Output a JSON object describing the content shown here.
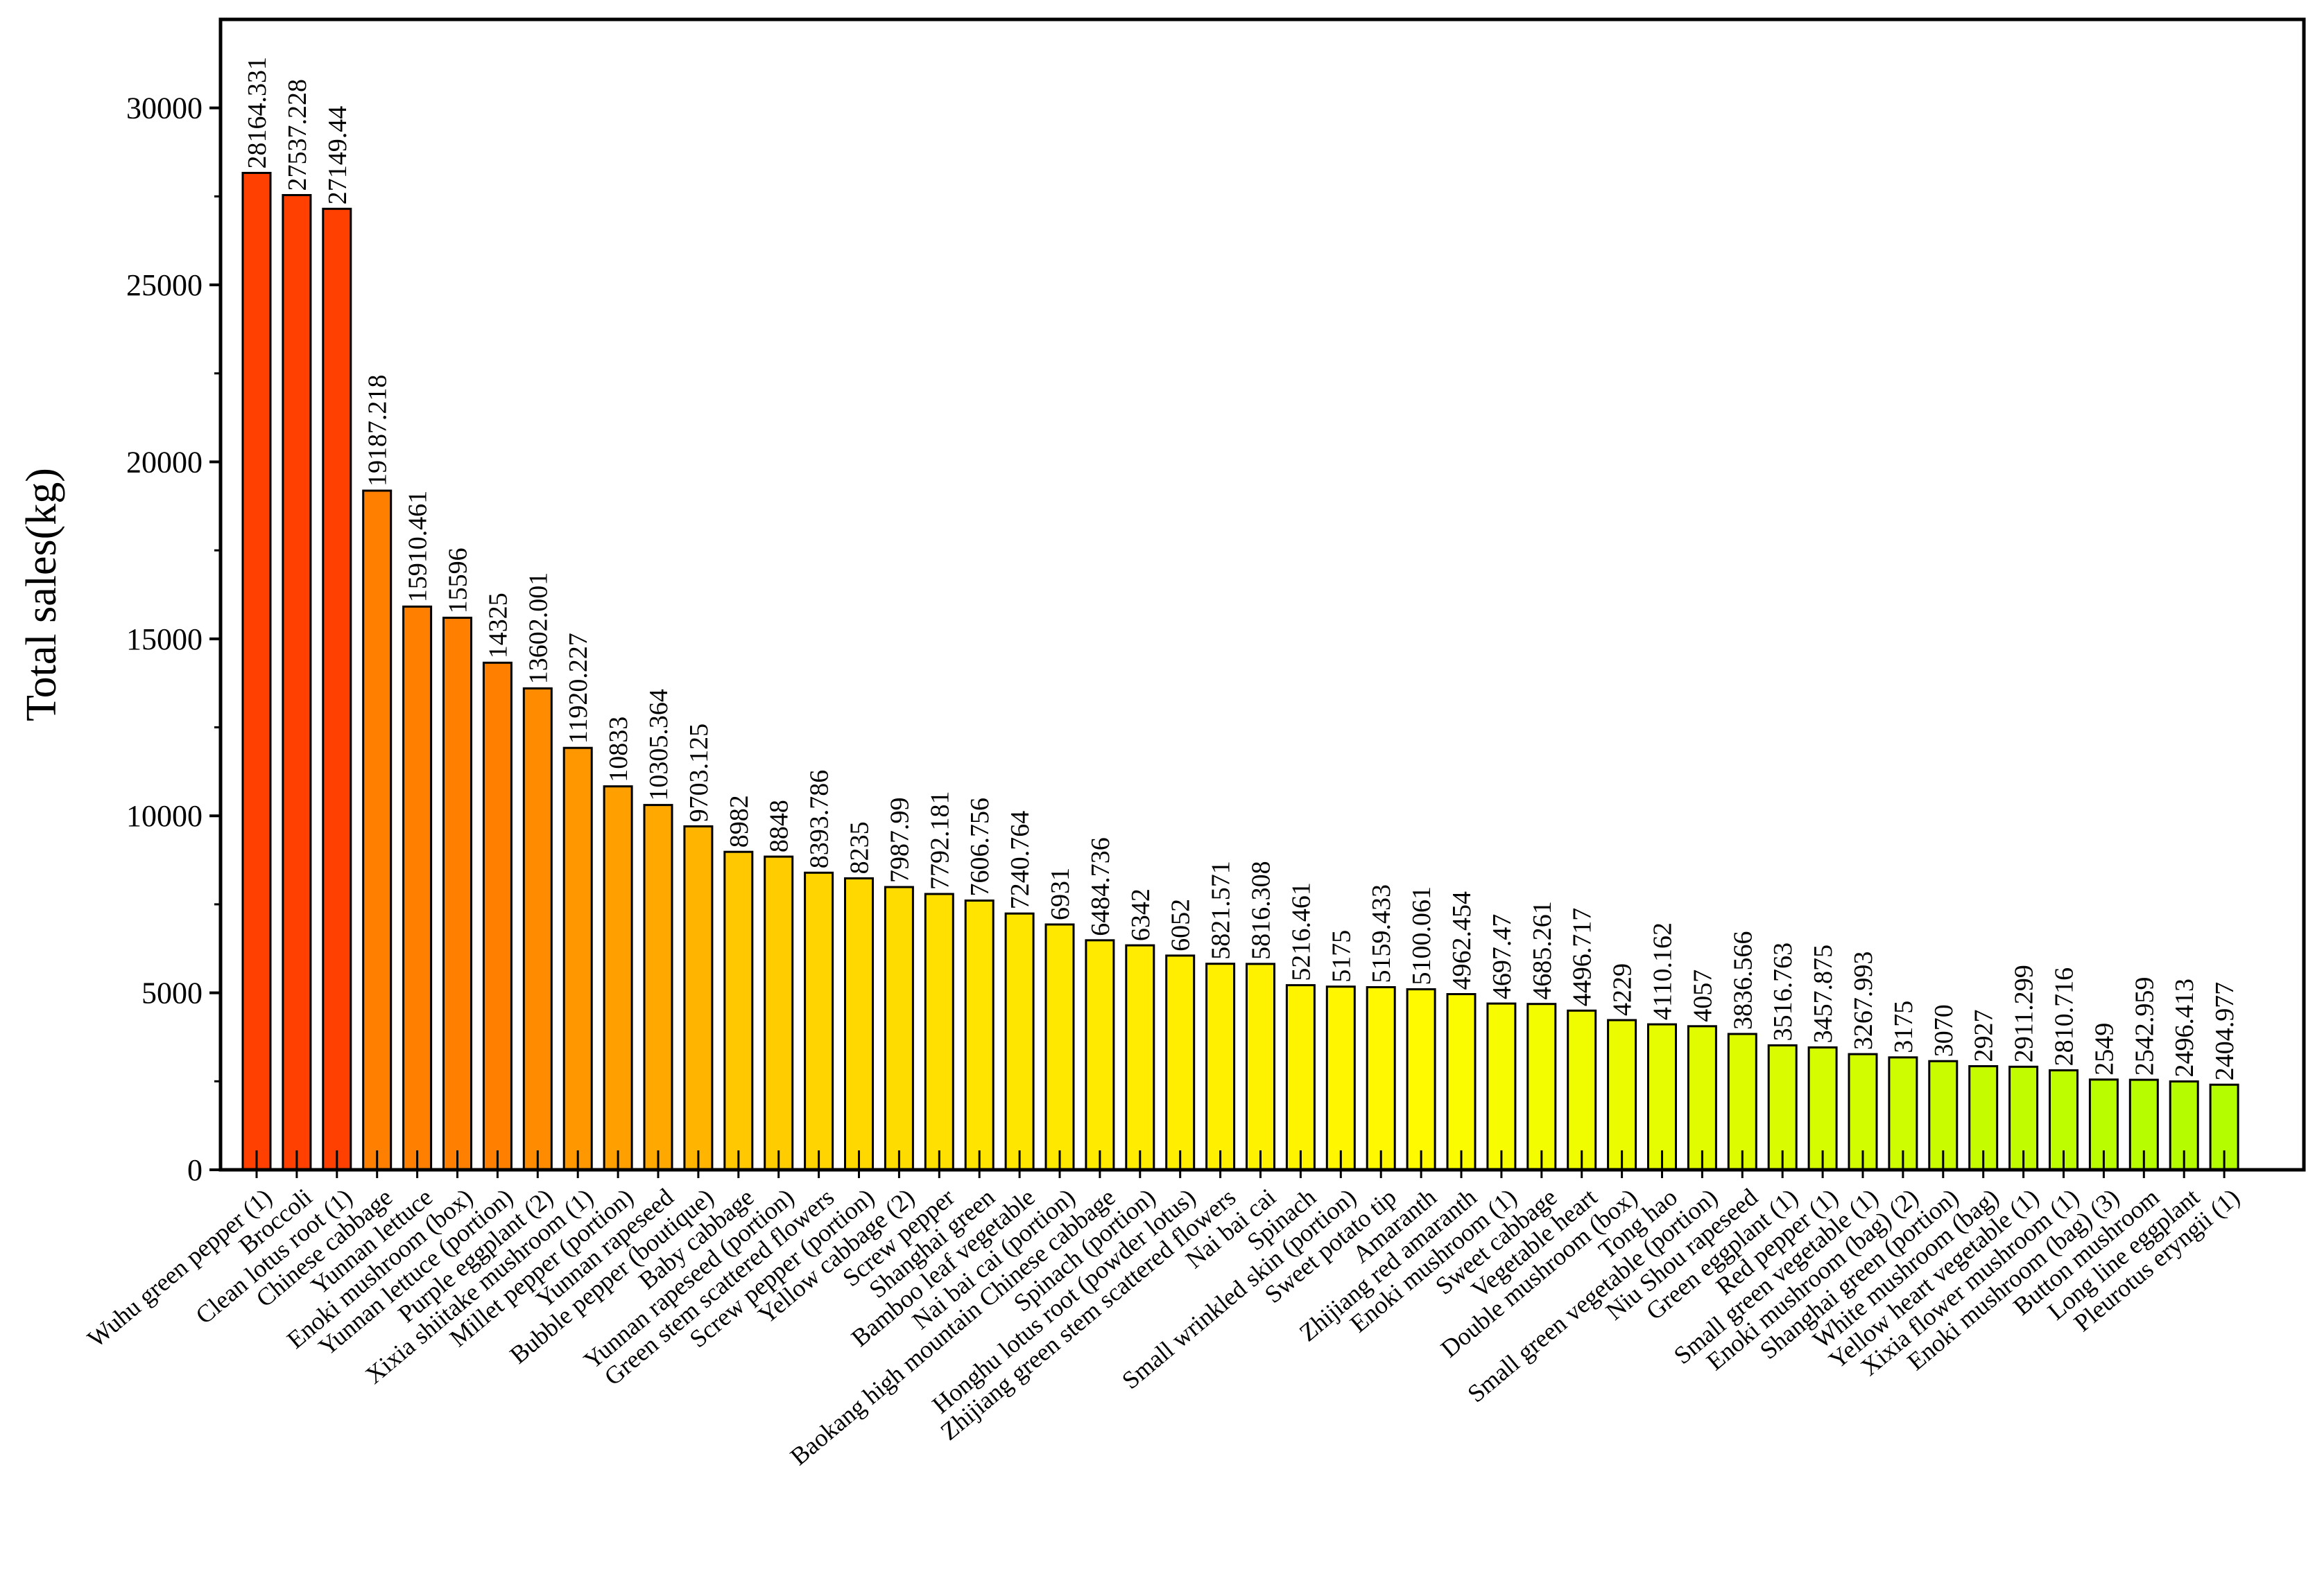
{
  "chart_data": {
    "type": "bar",
    "title": "",
    "xlabel": "",
    "ylabel": "Total sales(kg)",
    "ylim": [
      0,
      32500
    ],
    "yticks": [
      0,
      5000,
      10000,
      15000,
      20000,
      25000,
      30000
    ],
    "grid": false,
    "categories": [
      "Wuhu green pepper (1)",
      "Broccoli",
      "Clean lotus root (1)",
      "Chinese cabbage",
      "Yunnan lettuce",
      "Enoki mushroom (box)",
      "Yunnan lettuce (portion)",
      "Purple eggplant (2)",
      "Xixia shiitake mushroom (1)",
      "Millet pepper (portion)",
      "Yunnan rapeseed",
      "Bubble pepper (boutique)",
      "Baby cabbage",
      "Yunnan rapeseed (portion)",
      "Green stem scattered flowers",
      "Screw pepper (portion)",
      "Yellow cabbage (2)",
      "Screw pepper",
      "Shanghai green",
      "Bamboo leaf vegetable",
      "Nai bai cai (portion)",
      "Baokang high mountain Chinese cabbage",
      "Spinach (portion)",
      "Honghu lotus root (powder lotus)",
      "Zhijiang green stem scattered flowers",
      "Nai bai cai",
      "Spinach",
      "Small wrinkled skin (portion)",
      "Sweet potato tip",
      "Amaranth",
      "Zhijiang red amaranth",
      "Enoki mushroom (1)",
      "Sweet cabbage",
      "Vegetable heart",
      "Double mushroom (box)",
      "Tong hao",
      "Small green vegetable (portion)",
      "Niu Shou rapeseed",
      "Green eggplant (1)",
      "Red pepper (1)",
      "Small green vegetable (1)",
      "Enoki mushroom (bag) (2)",
      "Shanghai green (portion)",
      "White mushroom (bag)",
      "Yellow heart vegetable (1)",
      "Xixia flower mushroom (1)",
      "Enoki mushroom (bag) (3)",
      "Button mushroom",
      "Long line eggplant",
      "Pleurotus eryngii (1)"
    ],
    "values": [
      28164.331,
      27537.228,
      27149.44,
      19187.218,
      15910.461,
      15596,
      14325,
      13602.001,
      11920.227,
      10833,
      10305.364,
      9703.125,
      8982,
      8848,
      8393.786,
      8235,
      7987.99,
      7792.181,
      7606.756,
      7240.764,
      6931,
      6484.736,
      6342,
      6052,
      5821.571,
      5816.308,
      5216.461,
      5175,
      5159.433,
      5100.061,
      4962.454,
      4697.47,
      4685.261,
      4496.717,
      4229,
      4110.162,
      4057,
      3836.566,
      3516.763,
      3457.875,
      3267.993,
      3175,
      3070,
      2927,
      2911.299,
      2810.716,
      2549,
      2542.959,
      2496.413,
      2404.977
    ],
    "value_labels": [
      "28164.331",
      "27537.228",
      "27149.44",
      "19187.218",
      "15910.461",
      "15596",
      "14325",
      "13602.001",
      "11920.227",
      "10833",
      "10305.364",
      "9703.125",
      "8982",
      "8848",
      "8393.786",
      "8235",
      "7987.99",
      "7792.181",
      "7606.756",
      "7240.764",
      "6931",
      "6484.736",
      "6342",
      "6052",
      "5821.571",
      "5816.308",
      "5216.461",
      "5175",
      "5159.433",
      "5100.061",
      "4962.454",
      "4697.47",
      "4685.261",
      "4496.717",
      "4229",
      "4110.162",
      "4057",
      "3836.566",
      "3516.763",
      "3457.875",
      "3267.993",
      "3175",
      "3070",
      "2927",
      "2911.299",
      "2810.716",
      "2549",
      "2542.959",
      "2496.413",
      "2404.977"
    ],
    "bar_colors": [
      "#ff4000",
      "#ff4000",
      "#ff4000",
      "#ff7f00",
      "#ff7f00",
      "#ff7f00",
      "#ff7f00",
      "#ff8c00",
      "#ff9800",
      "#ffa000",
      "#ffa800",
      "#ffb400",
      "#ffc800",
      "#ffcc00",
      "#ffd400",
      "#ffd800",
      "#ffdc00",
      "#ffe000",
      "#ffe400",
      "#ffe600",
      "#ffe800",
      "#ffea00",
      "#ffec00",
      "#ffee00",
      "#fff000",
      "#fff200",
      "#fff400",
      "#fff600",
      "#fff800",
      "#fffa00",
      "#fcfc00",
      "#f8fc00",
      "#f4fc00",
      "#f0fc00",
      "#ecfc00",
      "#e6fc00",
      "#e2fc00",
      "#defc00",
      "#dafc00",
      "#d6fc00",
      "#d2fc00",
      "#cefc00",
      "#cafc00",
      "#c6fc00",
      "#c2fc00",
      "#befc00",
      "#bafc00",
      "#b8fc00",
      "#b6fc00",
      "#b4fc00"
    ]
  }
}
